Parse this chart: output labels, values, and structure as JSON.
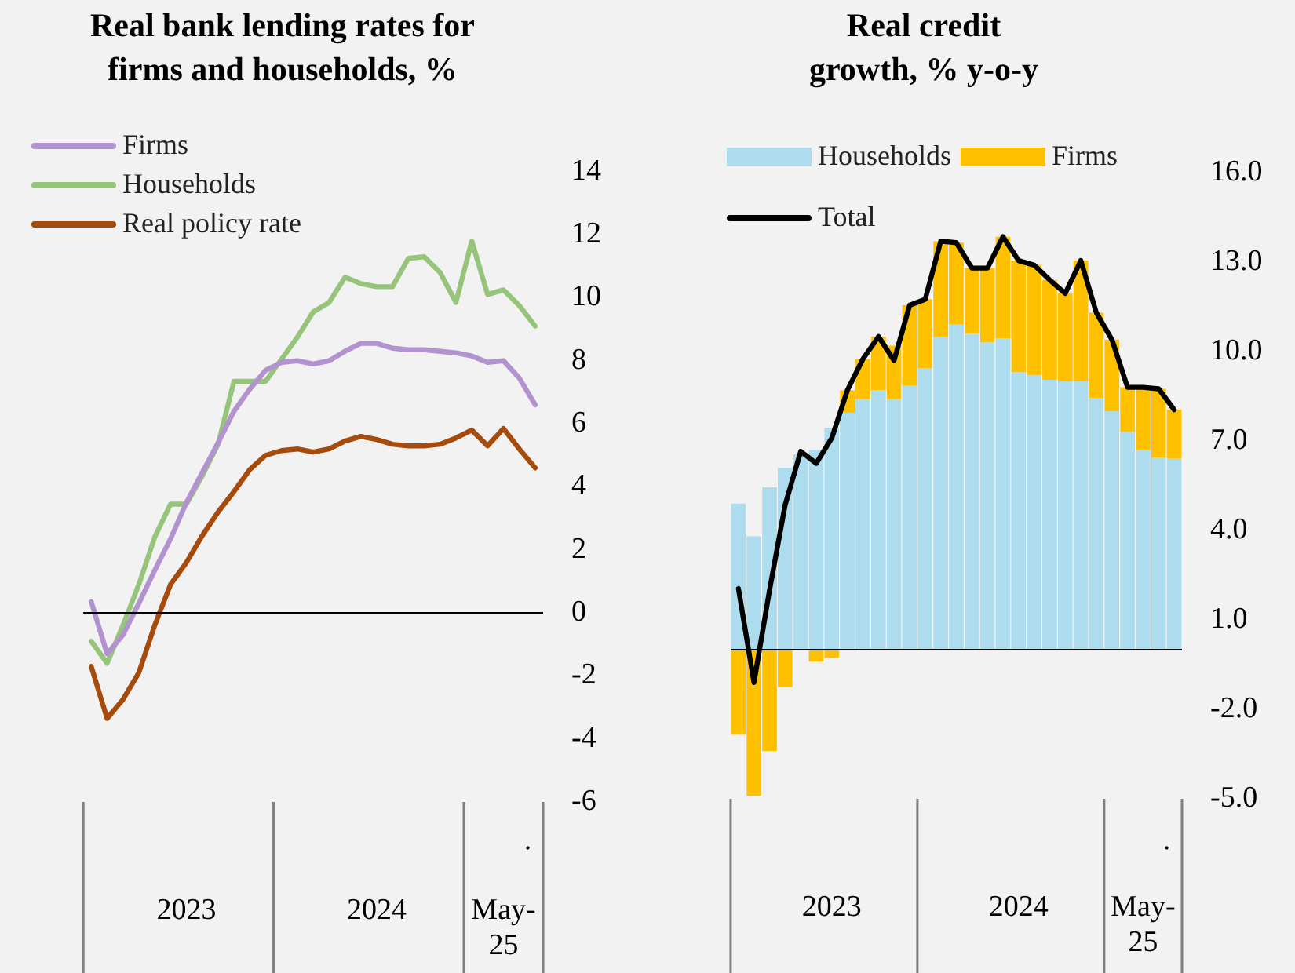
{
  "chart_data": [
    {
      "type": "line",
      "title": "Real bank lending rates for firms and households, %",
      "categories": [
        null,
        null,
        null,
        null,
        null,
        null,
        "2023",
        null,
        null,
        null,
        null,
        null,
        null,
        null,
        null,
        null,
        null,
        null,
        "2024",
        null,
        null,
        null,
        null,
        null,
        null,
        null,
        "May-25",
        null,
        null
      ],
      "series": [
        {
          "name": "Firms",
          "color": "#b392d0",
          "values": [
            0.35,
            -1.3,
            -0.7,
            0.3,
            1.35,
            2.35,
            3.5,
            4.45,
            5.4,
            6.4,
            7.1,
            7.7,
            7.95,
            8.0,
            7.9,
            8.0,
            8.3,
            8.55,
            8.55,
            8.4,
            8.35,
            8.35,
            8.3,
            8.25,
            8.15,
            7.95,
            8.0,
            7.45,
            6.6
          ]
        },
        {
          "name": "Households",
          "color": "#96c47a",
          "values": [
            -0.9,
            -1.6,
            -0.4,
            0.9,
            2.4,
            3.45,
            3.45,
            4.35,
            5.35,
            7.35,
            7.35,
            7.35,
            8.05,
            8.75,
            9.55,
            9.85,
            10.65,
            10.45,
            10.35,
            10.35,
            11.25,
            11.3,
            10.8,
            9.85,
            11.8,
            10.1,
            10.25,
            9.75,
            9.1
          ]
        },
        {
          "name": "Real policy rate",
          "color": "#a64b0b",
          "values": [
            -1.7,
            -3.35,
            -2.75,
            -1.9,
            -0.4,
            0.9,
            1.6,
            2.45,
            3.2,
            3.85,
            4.55,
            5.0,
            5.15,
            5.2,
            5.1,
            5.2,
            5.45,
            5.6,
            5.5,
            5.35,
            5.3,
            5.3,
            5.35,
            5.55,
            5.8,
            5.3,
            5.85,
            5.2,
            4.6
          ]
        }
      ],
      "ylim": [
        -6,
        14
      ],
      "yticks": [
        -6,
        -4,
        -2,
        0,
        2,
        4,
        6,
        8,
        10,
        12,
        14
      ],
      "legend": "top left",
      "marker": "none",
      "line_style": "solid",
      "annotations": [
        "."
      ]
    },
    {
      "type": "bar",
      "stacked": true,
      "title": "Real credit growth, % y-o-y",
      "categories": [
        null,
        null,
        null,
        null,
        null,
        null,
        "2023",
        null,
        null,
        null,
        null,
        null,
        null,
        null,
        null,
        null,
        null,
        null,
        "2024",
        null,
        null,
        null,
        null,
        null,
        null,
        null,
        "May-25",
        null,
        null
      ],
      "series": [
        {
          "name": "Households",
          "color": "#acdcee",
          "values": [
            4.9,
            3.8,
            5.45,
            6.1,
            6.55,
            6.7,
            7.45,
            7.95,
            8.4,
            8.7,
            8.4,
            8.85,
            9.45,
            10.5,
            10.9,
            10.6,
            10.3,
            10.45,
            9.3,
            9.2,
            9.05,
            9.0,
            9.0,
            8.45,
            8.0,
            7.3,
            6.7,
            6.45,
            6.4
          ]
        },
        {
          "name": "Firms",
          "color": "#ffc000",
          "values": [
            -2.85,
            -4.9,
            -3.4,
            -1.25,
            null,
            -0.4,
            -0.27,
            0.75,
            1.35,
            1.8,
            1.8,
            2.7,
            2.3,
            3.2,
            2.75,
            2.2,
            2.5,
            3.4,
            3.75,
            3.7,
            3.35,
            2.95,
            4.05,
            2.85,
            2.4,
            1.5,
            2.1,
            2.3,
            1.65
          ]
        },
        {
          "name": "Total",
          "type": "line",
          "color": "#000000",
          "values": [
            2.05,
            -1.1,
            2.0,
            4.85,
            6.65,
            6.25,
            7.1,
            8.7,
            9.75,
            10.5,
            9.7,
            11.55,
            11.75,
            13.7,
            13.65,
            12.8,
            12.8,
            13.85,
            13.05,
            12.9,
            12.4,
            11.95,
            13.05,
            11.3,
            10.4,
            8.8,
            8.8,
            8.75,
            8.05
          ]
        }
      ],
      "ylim": [
        -5,
        16
      ],
      "yticks": [
        {
          "value": -5,
          "label": "-5.0"
        },
        {
          "value": -2,
          "label": "-2.0"
        },
        {
          "value": 1,
          "label": "1.0"
        },
        {
          "value": 4,
          "label": "4.0"
        },
        {
          "value": 7,
          "label": "7.0"
        },
        {
          "value": 10,
          "label": "10.0"
        },
        {
          "value": 13,
          "label": "13.0"
        },
        {
          "value": 16,
          "label": "16.0"
        }
      ],
      "legend": "top left",
      "marker": "none",
      "line_style": "solid",
      "annotations": [
        "."
      ]
    }
  ]
}
